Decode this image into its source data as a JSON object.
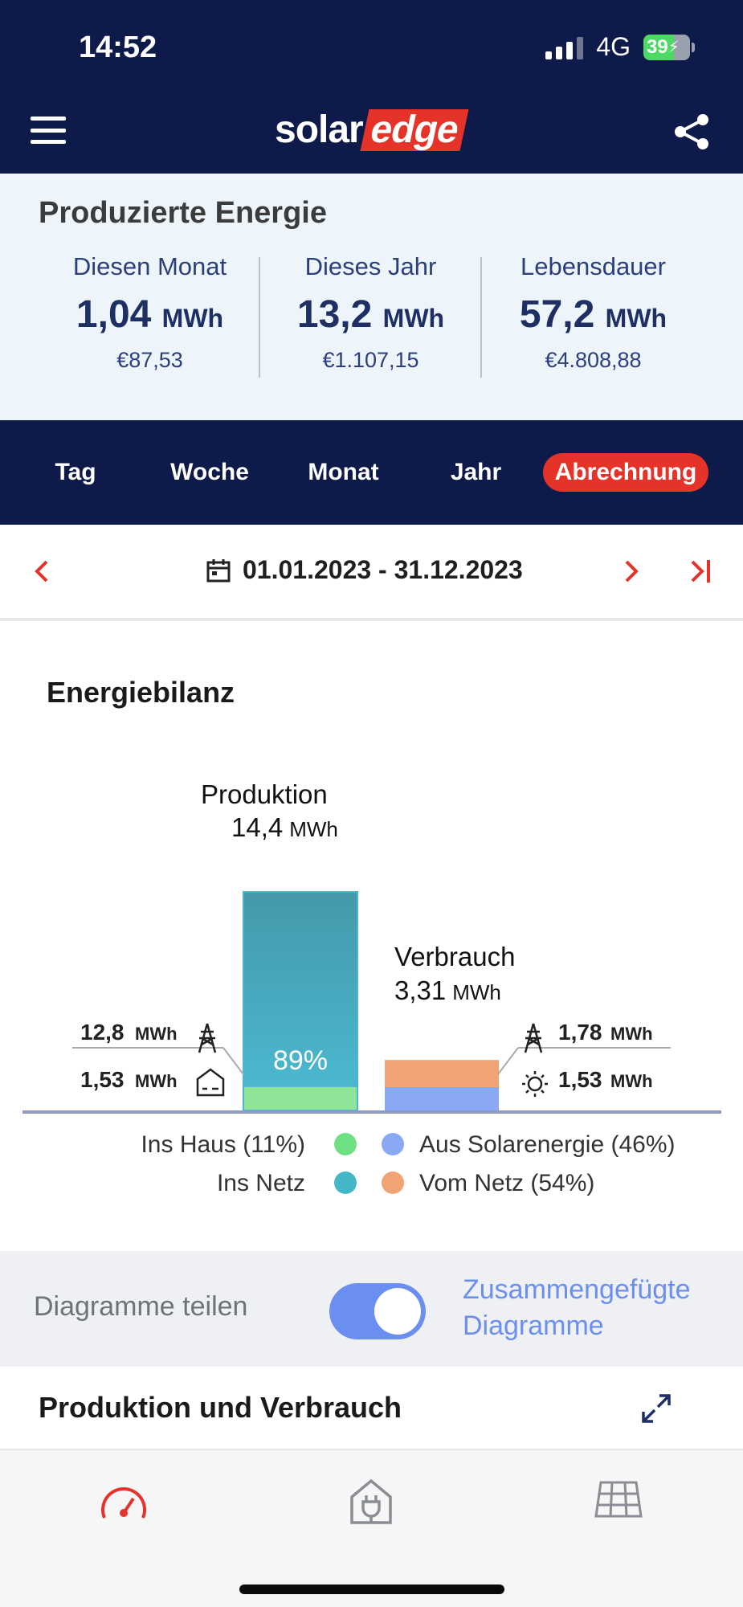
{
  "status": {
    "time": "14:52",
    "network": "4G",
    "battery": "39"
  },
  "app": {
    "logo_solar": "solar",
    "logo_edge": "edge"
  },
  "energy": {
    "title": "Produzierte Energie",
    "cols": [
      {
        "label": "Diesen Monat",
        "value": "1,04",
        "unit": "MWh",
        "money": "€87,53"
      },
      {
        "label": "Dieses Jahr",
        "value": "13,2",
        "unit": "MWh",
        "money": "€1.107,15"
      },
      {
        "label": "Lebensdauer",
        "value": "57,2",
        "unit": "MWh",
        "money": "€4.808,88"
      }
    ]
  },
  "tabs": [
    "Tag",
    "Woche",
    "Monat",
    "Jahr",
    "Abrechnung"
  ],
  "active_tab": "Abrechnung",
  "date_range": "01.01.2023 - 31.12.2023",
  "chart_data": {
    "type": "bar",
    "title": "Energiebilanz",
    "bars": [
      {
        "name": "Produktion",
        "total": "14,4",
        "unit": "MWh",
        "segments": [
          {
            "name": "Ins Netz",
            "value": 12.8,
            "label": "12,8",
            "color": "#45a6b6"
          },
          {
            "name": "Ins Haus",
            "value": 1.53,
            "label": "1,53",
            "color": "#8ee59a"
          }
        ],
        "percent_label": "89%"
      },
      {
        "name": "Verbrauch",
        "total": "3,31",
        "unit": "MWh",
        "segments": [
          {
            "name": "Vom Netz",
            "value": 1.78,
            "label": "1,78",
            "color": "#f0a473"
          },
          {
            "name": "Aus Solarenergie",
            "value": 1.53,
            "label": "1,53",
            "color": "#8aa9f5"
          }
        ]
      }
    ],
    "unit": "MWh",
    "legend": [
      {
        "label": "Ins Haus (11%)",
        "color": "#6fdf84"
      },
      {
        "label": "Aus Solarenergie (46%)",
        "color": "#8aa9f5"
      },
      {
        "label": "Ins Netz",
        "color": "#45b6c8"
      },
      {
        "label": "Vom Netz (54%)",
        "color": "#f0a473"
      }
    ]
  },
  "toggle": {
    "label": "Diagramme teilen",
    "alt_line1": "Zusammengefügte",
    "alt_line2": "Diagramme",
    "on": true
  },
  "section": {
    "title": "Produktion und Verbrauch"
  },
  "colors": {
    "navy": "#0d1a4a",
    "accent": "#e6332a",
    "link": "#6b8ff0"
  }
}
